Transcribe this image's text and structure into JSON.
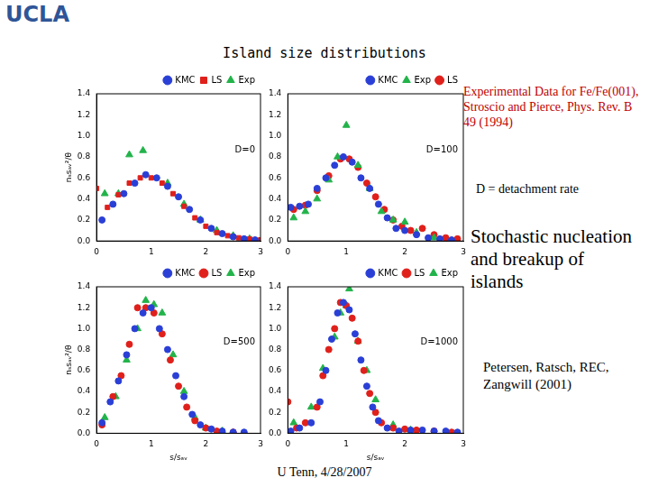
{
  "header": {
    "logo": "UCLA",
    "title": "Island size distributions"
  },
  "annotations": {
    "experiment": "Experimental Data for Fe/Fe(001), Stroscio and Pierce, Phys. Rev. B 49 (1994)",
    "definition": "D = detachment rate",
    "headline": "Stochastic nucleation and breakup of islands",
    "citation": "Petersen, Ratsch, REC, Zangwill (2001)"
  },
  "footer": "U Tenn, 4/28/2007",
  "chart_data": [
    {
      "type": "scatter",
      "annotation": "D=0",
      "ylabel": "nₛsₐᵥ²/θ",
      "xlim": [
        0,
        3
      ],
      "xticks": [
        0,
        1,
        2,
        3
      ],
      "ylim": [
        0,
        1.4
      ],
      "yticks": [
        {
          "value": 0,
          "label": "0.0"
        },
        0.2,
        0.4,
        0.6,
        0.8,
        {
          "value": 1,
          "label": "1.0"
        },
        1.2,
        1.4
      ],
      "grid": false,
      "legend": "upper right",
      "series": [
        {
          "name": "KMC",
          "color": "#2a3fd6",
          "marker": "circle",
          "x": [
            0.1,
            0.3,
            0.5,
            0.7,
            0.9,
            1.1,
            1.3,
            1.5,
            1.7,
            1.9,
            2.1,
            2.3,
            2.5,
            2.7,
            2.9
          ],
          "values": [
            0.2,
            0.35,
            0.45,
            0.55,
            0.63,
            0.6,
            0.52,
            0.42,
            0.3,
            0.2,
            0.12,
            0.07,
            0.04,
            0.02,
            0.01
          ]
        },
        {
          "name": "LS",
          "color": "#e0201b",
          "marker": "square",
          "x": [
            0.0,
            0.2,
            0.4,
            0.6,
            0.8,
            1.0,
            1.2,
            1.4,
            1.6,
            1.8,
            2.0,
            2.2,
            2.4,
            2.6,
            2.8,
            3.0
          ],
          "values": [
            0.5,
            0.32,
            0.44,
            0.55,
            0.6,
            0.6,
            0.55,
            0.45,
            0.33,
            0.22,
            0.14,
            0.08,
            0.05,
            0.03,
            0.02,
            0.01
          ]
        },
        {
          "name": "Exp",
          "color": "#22b34a",
          "marker": "triangle",
          "x": [
            0.15,
            0.4,
            0.6,
            0.85,
            1.3,
            1.6,
            1.9,
            2.2,
            2.5,
            2.8
          ],
          "values": [
            0.45,
            0.45,
            0.82,
            0.86,
            0.55,
            0.35,
            0.2,
            0.1,
            0.05,
            0.02
          ]
        }
      ]
    },
    {
      "type": "scatter",
      "annotation": "D=100",
      "xlim": [
        0,
        3
      ],
      "xticks": [
        0,
        1,
        2,
        3
      ],
      "ylim": [
        0,
        1.4
      ],
      "yticks": [
        {
          "value": 0,
          "label": "0.0"
        },
        0.2,
        0.4,
        0.6,
        0.8,
        {
          "value": 1,
          "label": "1.0"
        },
        1.2,
        1.4
      ],
      "grid": false,
      "legend": "upper right",
      "series": [
        {
          "name": "KMC",
          "color": "#2a3fd6",
          "marker": "circle",
          "x": [
            0.05,
            0.2,
            0.35,
            0.5,
            0.65,
            0.8,
            0.95,
            1.1,
            1.25,
            1.4,
            1.55,
            1.7,
            1.85,
            2.0,
            2.2,
            2.4,
            2.6,
            2.8
          ],
          "values": [
            0.32,
            0.33,
            0.35,
            0.5,
            0.6,
            0.72,
            0.8,
            0.75,
            0.6,
            0.5,
            0.35,
            0.22,
            0.12,
            0.1,
            0.06,
            0.03,
            0.02,
            0.01
          ]
        },
        {
          "name": "Exp",
          "color": "#22b34a",
          "marker": "triangle",
          "x": [
            0.1,
            0.3,
            0.5,
            0.7,
            0.85,
            1.0,
            1.2,
            1.4,
            1.6,
            1.8,
            2.0,
            2.2,
            2.5
          ],
          "values": [
            0.22,
            0.28,
            0.4,
            0.58,
            0.8,
            1.1,
            0.72,
            0.5,
            0.28,
            0.2,
            0.18,
            0.08,
            0.03
          ]
        },
        {
          "name": "LS",
          "color": "#e0201b",
          "marker": "circle",
          "x": [
            0.1,
            0.3,
            0.5,
            0.7,
            0.9,
            1.05,
            1.2,
            1.35,
            1.5,
            1.65,
            1.8,
            1.95,
            2.1,
            2.3,
            2.5,
            2.7,
            2.9
          ],
          "values": [
            0.3,
            0.34,
            0.48,
            0.62,
            0.78,
            0.78,
            0.7,
            0.55,
            0.42,
            0.3,
            0.2,
            0.14,
            0.1,
            0.12,
            0.06,
            0.03,
            0.02
          ]
        }
      ]
    },
    {
      "type": "scatter",
      "annotation": "D=500",
      "ylabel": "nₛsₐᵥ²/θ",
      "xlabel": "s/sₐᵥ",
      "xlim": [
        0,
        3
      ],
      "xticks": [
        0,
        1,
        2,
        3
      ],
      "ylim": [
        0,
        1.4
      ],
      "yticks": [
        {
          "value": 0,
          "label": "0.0"
        },
        0.2,
        0.4,
        0.6,
        0.8,
        {
          "value": 1,
          "label": "1.0"
        },
        1.2,
        1.4
      ],
      "grid": false,
      "legend": "upper right",
      "series": [
        {
          "name": "KMC",
          "color": "#2a3fd6",
          "marker": "circle",
          "x": [
            0.1,
            0.25,
            0.4,
            0.55,
            0.7,
            0.85,
            1.0,
            1.15,
            1.3,
            1.45,
            1.6,
            1.75,
            1.9,
            2.1,
            2.3,
            2.5,
            2.7
          ],
          "values": [
            0.1,
            0.3,
            0.5,
            0.75,
            1.0,
            1.15,
            1.2,
            1.0,
            0.8,
            0.55,
            0.35,
            0.18,
            0.08,
            0.04,
            0.02,
            0.01,
            0.01
          ]
        },
        {
          "name": "LS",
          "color": "#e0201b",
          "marker": "circle",
          "x": [
            0.1,
            0.3,
            0.45,
            0.6,
            0.75,
            0.9,
            1.05,
            1.2,
            1.35,
            1.5,
            1.65,
            1.8,
            2.0,
            2.2,
            2.5
          ],
          "values": [
            0.08,
            0.35,
            0.55,
            0.85,
            1.2,
            1.2,
            1.15,
            0.95,
            0.7,
            0.45,
            0.25,
            0.12,
            0.05,
            0.02,
            0.01
          ]
        },
        {
          "name": "Exp",
          "color": "#22b34a",
          "marker": "triangle",
          "x": [
            0.15,
            0.35,
            0.55,
            0.75,
            0.9,
            1.05,
            1.2,
            1.4,
            1.6,
            1.8,
            2.0,
            2.3
          ],
          "values": [
            0.15,
            0.35,
            0.7,
            1.0,
            1.27,
            1.23,
            1.15,
            0.75,
            0.4,
            0.15,
            0.05,
            0.02
          ]
        }
      ]
    },
    {
      "type": "scatter",
      "annotation": "D=1000",
      "xlabel": "s/sₐᵥ",
      "xlim": [
        0,
        3
      ],
      "xticks": [
        0,
        1,
        2,
        3
      ],
      "ylim": [
        0,
        1.4
      ],
      "yticks": [
        {
          "value": 0,
          "label": "0.0"
        },
        0.2,
        0.4,
        0.6,
        0.8,
        {
          "value": 1,
          "label": "1.0"
        },
        1.2,
        1.4
      ],
      "grid": false,
      "legend": "upper right",
      "series": [
        {
          "name": "KMC",
          "color": "#2a3fd6",
          "marker": "circle",
          "x": [
            0.05,
            0.2,
            0.4,
            0.55,
            0.65,
            0.75,
            0.85,
            0.95,
            1.05,
            1.15,
            1.25,
            1.35,
            1.45,
            1.55,
            1.7,
            1.9,
            2.1,
            2.3,
            2.5,
            2.7,
            2.9
          ],
          "values": [
            0.02,
            0.05,
            0.1,
            0.3,
            0.6,
            0.9,
            1.15,
            1.25,
            1.18,
            0.95,
            0.7,
            0.45,
            0.25,
            0.12,
            0.05,
            0.02,
            0.03,
            0.03,
            0.02,
            0.02,
            0.01
          ]
        },
        {
          "name": "LS",
          "color": "#e0201b",
          "marker": "circle",
          "x": [
            0.0,
            0.15,
            0.3,
            0.5,
            0.6,
            0.7,
            0.8,
            0.9,
            1.0,
            1.1,
            1.2,
            1.3,
            1.4,
            1.5,
            1.6,
            1.8,
            2.0,
            2.2,
            2.5,
            2.8
          ],
          "values": [
            0.3,
            0.05,
            0.1,
            0.25,
            0.55,
            0.8,
            1.0,
            1.25,
            1.22,
            1.1,
            0.88,
            0.6,
            0.38,
            0.2,
            0.1,
            0.05,
            0.04,
            0.03,
            0.02,
            0.01
          ]
        },
        {
          "name": "Exp",
          "color": "#22b34a",
          "marker": "triangle",
          "x": [
            0.1,
            0.4,
            0.6,
            0.8,
            0.9,
            1.0,
            1.05,
            1.2,
            1.35,
            1.5,
            1.8,
            2.1
          ],
          "values": [
            0.1,
            0.25,
            0.62,
            0.92,
            1.15,
            1.22,
            1.38,
            0.88,
            0.6,
            0.32,
            0.08,
            0.03
          ]
        }
      ]
    }
  ]
}
